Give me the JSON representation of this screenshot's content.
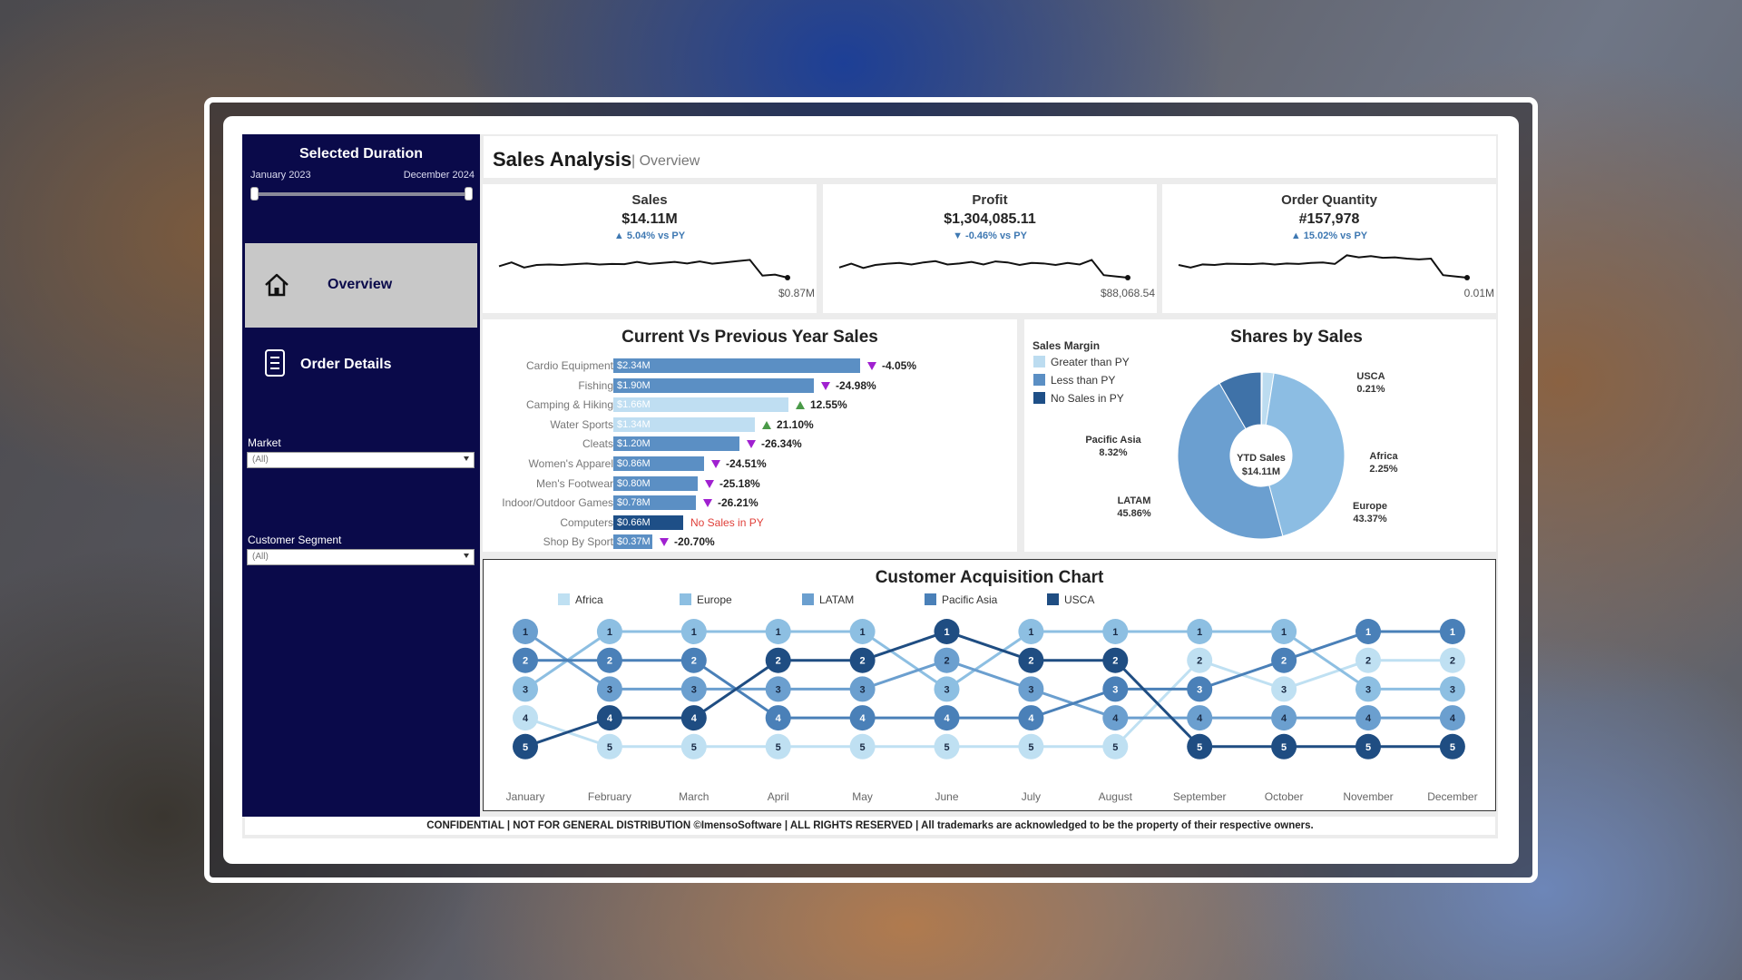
{
  "sidebar": {
    "duration_title": "Selected Duration",
    "date_start": "January 2023",
    "date_end": "December 2024",
    "nav": [
      {
        "label": "Overview",
        "active": true,
        "icon": "home-icon"
      },
      {
        "label": "Order Details",
        "active": false,
        "icon": "document-icon"
      }
    ],
    "filters": [
      {
        "label": "Market",
        "value": "(All)"
      },
      {
        "label": "Customer Segment",
        "value": "(All)"
      }
    ]
  },
  "header": {
    "title": "Sales Analysis",
    "subtitle": "| Overview"
  },
  "kpis": [
    {
      "title": "Sales",
      "value": "$14.11M",
      "delta": "5.04% vs PY",
      "direction": "up",
      "last": "$0.87M",
      "trend": [
        0.55,
        0.4,
        0.6,
        0.5,
        0.48,
        0.5,
        0.47,
        0.44,
        0.48,
        0.46,
        0.47,
        0.38,
        0.46,
        0.42,
        0.38,
        0.44,
        0.36,
        0.45,
        0.4,
        0.35,
        0.3,
        0.92,
        0.88,
        1.0
      ]
    },
    {
      "title": "Profit",
      "value": "$1,304,085.11",
      "delta": "-0.46% vs PY",
      "direction": "down",
      "last": "$88,068.54",
      "trend": [
        0.6,
        0.45,
        0.62,
        0.5,
        0.45,
        0.42,
        0.48,
        0.4,
        0.35,
        0.48,
        0.44,
        0.38,
        0.48,
        0.36,
        0.4,
        0.5,
        0.42,
        0.44,
        0.5,
        0.42,
        0.48,
        0.3,
        0.9,
        0.95,
        1.0
      ]
    },
    {
      "title": "Order Quantity",
      "value": "#157,978",
      "delta": "15.02% vs PY",
      "direction": "up",
      "last": "0.01M",
      "trend": [
        0.5,
        0.6,
        0.48,
        0.5,
        0.45,
        0.46,
        0.47,
        0.44,
        0.48,
        0.44,
        0.46,
        0.42,
        0.4,
        0.46,
        0.12,
        0.2,
        0.15,
        0.22,
        0.2,
        0.25,
        0.28,
        0.25,
        0.9,
        0.95,
        1.0
      ]
    }
  ],
  "cvp": {
    "title": "Current Vs Previous Year Sales",
    "rows": [
      {
        "category": "Cardio Equipment",
        "label": "$2.34M",
        "value": 2.34,
        "delta": "-4.05%",
        "dir": "down",
        "status": "less"
      },
      {
        "category": "Fishing",
        "label": "$1.90M",
        "value": 1.9,
        "delta": "-24.98%",
        "dir": "down",
        "status": "less"
      },
      {
        "category": "Camping & Hiking",
        "label": "$1.66M",
        "value": 1.66,
        "delta": "12.55%",
        "dir": "up",
        "status": "greater"
      },
      {
        "category": "Water Sports",
        "label": "$1.34M",
        "value": 1.34,
        "delta": "21.10%",
        "dir": "up",
        "status": "greater"
      },
      {
        "category": "Cleats",
        "label": "$1.20M",
        "value": 1.2,
        "delta": "-26.34%",
        "dir": "down",
        "status": "less"
      },
      {
        "category": "Women's Apparel",
        "label": "$0.86M",
        "value": 0.86,
        "delta": "-24.51%",
        "dir": "down",
        "status": "less"
      },
      {
        "category": "Men's Footwear",
        "label": "$0.80M",
        "value": 0.8,
        "delta": "-25.18%",
        "dir": "down",
        "status": "less"
      },
      {
        "category": "Indoor/Outdoor Games",
        "label": "$0.78M",
        "value": 0.78,
        "delta": "-26.21%",
        "dir": "down",
        "status": "less"
      },
      {
        "category": "Computers",
        "label": "$0.66M",
        "value": 0.66,
        "delta": "No Sales in PY",
        "dir": "none",
        "status": "none"
      },
      {
        "category": "Shop By Sport",
        "label": "$0.37M",
        "value": 0.37,
        "delta": "-20.70%",
        "dir": "down",
        "status": "less"
      }
    ]
  },
  "shares": {
    "title": "Shares by Sales",
    "legend_title": "Sales Margin",
    "legend": [
      {
        "label": "Greater than PY",
        "color": "#bcdcf0"
      },
      {
        "label": "Less than PY",
        "color": "#5b8fc4"
      },
      {
        "label": "No Sales in PY",
        "color": "#1e4f87"
      }
    ],
    "center_label": "YTD Sales",
    "center_value": "$14.11M",
    "slices": [
      {
        "name": "USCA",
        "pct": "0.21%",
        "value": 0.21,
        "color": "#a8cce8"
      },
      {
        "name": "Africa",
        "pct": "2.25%",
        "value": 2.25,
        "color": "#bcdcf0"
      },
      {
        "name": "Europe",
        "pct": "43.37%",
        "value": 43.37,
        "color": "#8cbde3"
      },
      {
        "name": "LATAM",
        "pct": "45.86%",
        "value": 45.86,
        "color": "#6b9fd0"
      },
      {
        "name": "Pacific Asia",
        "pct": "8.32%",
        "value": 8.32,
        "color": "#3f72a8"
      }
    ]
  },
  "acq": {
    "title": "Customer Acquisition Chart",
    "months": [
      "January",
      "February",
      "March",
      "April",
      "May",
      "June",
      "July",
      "August",
      "September",
      "October",
      "November",
      "December"
    ],
    "series": [
      {
        "name": "Africa",
        "color": "#bfe0f2",
        "ranks": [
          4,
          5,
          5,
          5,
          5,
          5,
          5,
          5,
          2,
          3,
          2,
          2
        ]
      },
      {
        "name": "Europe",
        "color": "#8dbfe2",
        "ranks": [
          3,
          1,
          1,
          1,
          1,
          3,
          1,
          1,
          1,
          1,
          3,
          3
        ]
      },
      {
        "name": "LATAM",
        "color": "#6b9fcf",
        "ranks": [
          1,
          3,
          3,
          3,
          3,
          2,
          3,
          4,
          4,
          4,
          4,
          4
        ]
      },
      {
        "name": "Pacific Asia",
        "color": "#4a80b8",
        "ranks": [
          2,
          2,
          2,
          4,
          4,
          4,
          4,
          3,
          3,
          2,
          1,
          1
        ]
      },
      {
        "name": "USCA",
        "color": "#1f4d82",
        "ranks": [
          5,
          4,
          4,
          2,
          2,
          1,
          2,
          2,
          5,
          5,
          5,
          5
        ]
      }
    ]
  },
  "footer": "CONFIDENTIAL | NOT FOR GENERAL DISTRIBUTION ©ImensoSoftware | ALL RIGHTS RESERVED | All trademarks are acknowledged to be the property of their respective owners.",
  "chart_data": [
    {
      "type": "bar",
      "title": "Current Vs Previous Year Sales",
      "categories": [
        "Cardio Equipment",
        "Fishing",
        "Camping & Hiking",
        "Water Sports",
        "Cleats",
        "Women's Apparel",
        "Men's Footwear",
        "Indoor/Outdoor Games",
        "Computers",
        "Shop By Sport"
      ],
      "values": [
        2.34,
        1.9,
        1.66,
        1.34,
        1.2,
        0.86,
        0.8,
        0.78,
        0.66,
        0.37
      ]
    },
    {
      "type": "pie",
      "title": "Shares by Sales",
      "categories": [
        "USCA",
        "Africa",
        "Europe",
        "LATAM",
        "Pacific Asia"
      ],
      "values": [
        0.21,
        2.25,
        43.37,
        45.86,
        8.32
      ]
    },
    {
      "type": "line",
      "title": "Customer Acquisition Chart",
      "categories": [
        "January",
        "February",
        "March",
        "April",
        "May",
        "June",
        "July",
        "August",
        "September",
        "October",
        "November",
        "December"
      ],
      "series": [
        {
          "name": "Africa",
          "values": [
            4,
            5,
            5,
            5,
            5,
            5,
            5,
            5,
            2,
            3,
            2,
            2
          ]
        },
        {
          "name": "Europe",
          "values": [
            3,
            1,
            1,
            1,
            1,
            3,
            1,
            1,
            1,
            1,
            3,
            3
          ]
        },
        {
          "name": "LATAM",
          "values": [
            1,
            3,
            3,
            3,
            3,
            2,
            3,
            4,
            4,
            4,
            4,
            4
          ]
        },
        {
          "name": "Pacific Asia",
          "values": [
            2,
            2,
            2,
            4,
            4,
            4,
            4,
            3,
            3,
            2,
            1,
            1
          ]
        },
        {
          "name": "USCA",
          "values": [
            5,
            4,
            4,
            2,
            2,
            1,
            2,
            2,
            5,
            5,
            5,
            5
          ]
        }
      ]
    }
  ]
}
